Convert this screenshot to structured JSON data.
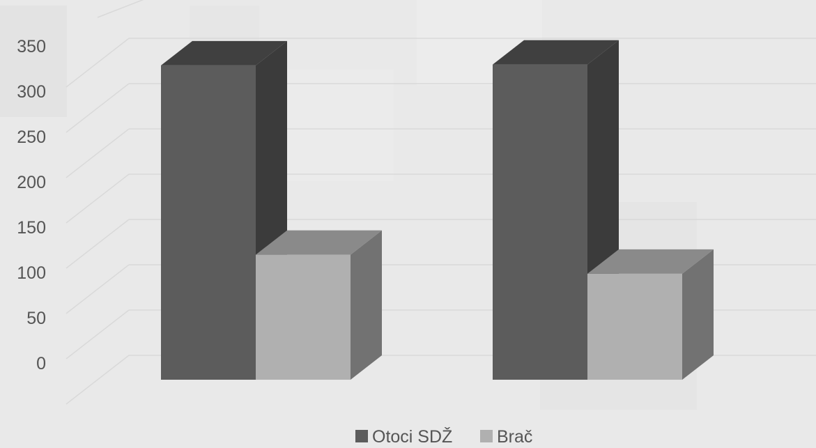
{
  "chart_data": {
    "type": "bar",
    "view": "3d-column",
    "categories": [
      "",
      ""
    ],
    "series": [
      {
        "name": "Otoci SDŽ",
        "values": [
          347,
          348
        ],
        "color": "#5c5c5c"
      },
      {
        "name": "Brač",
        "values": [
          138,
          117
        ],
        "color": "#b0b0b0"
      }
    ],
    "title": "",
    "xlabel": "",
    "ylabel": "",
    "ylim": [
      0,
      350
    ],
    "yticks": [
      "0",
      "50",
      "100",
      "150",
      "200",
      "250",
      "300",
      "350"
    ],
    "grid": true,
    "legend_position": "bottom"
  }
}
